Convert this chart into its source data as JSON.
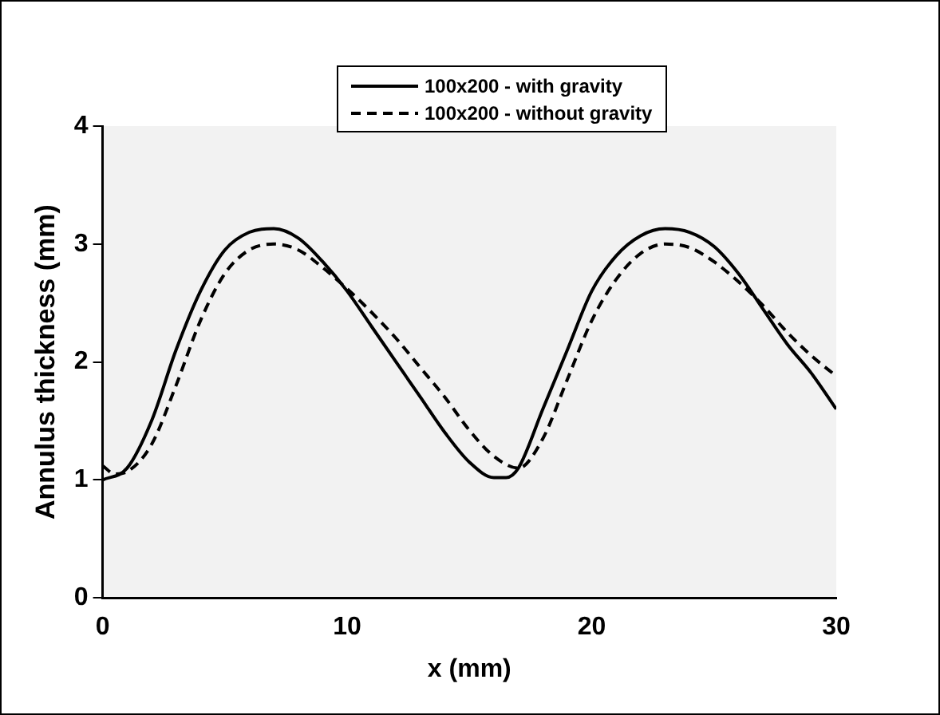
{
  "chart_data": {
    "type": "line",
    "xlabel": "x (mm)",
    "ylabel": "Annulus thickness (mm)",
    "xlim": [
      0,
      30
    ],
    "xticks": [
      0,
      10,
      20,
      30
    ],
    "ylim": [
      0,
      4
    ],
    "yticks": [
      0,
      1,
      2,
      3,
      4
    ],
    "grid": false,
    "legend": "top",
    "marker": "none",
    "series": [
      {
        "name": "100x200 - with gravity",
        "color": "#000000",
        "line_style": "solid",
        "x": [
          0,
          1,
          2,
          3,
          4,
          5,
          6,
          7,
          8,
          9,
          10,
          11,
          12,
          13,
          14,
          15,
          16,
          16.5,
          17,
          18,
          19,
          20,
          21,
          22,
          23,
          24,
          25,
          26,
          27,
          28,
          29,
          30
        ],
        "values": [
          1.0,
          1.1,
          1.5,
          2.1,
          2.6,
          2.95,
          3.1,
          3.13,
          3.05,
          2.85,
          2.6,
          2.3,
          2.0,
          1.7,
          1.4,
          1.15,
          1.02,
          1.02,
          1.1,
          1.6,
          2.1,
          2.6,
          2.9,
          3.07,
          3.13,
          3.1,
          2.98,
          2.75,
          2.45,
          2.15,
          1.9,
          1.6
        ]
      },
      {
        "name": "100x200 - without gravity",
        "color": "#000000",
        "line_style": "dashed",
        "x": [
          0,
          0.5,
          1,
          2,
          3,
          4,
          5,
          6,
          7,
          8,
          9,
          10,
          11,
          12,
          13,
          14,
          15,
          16,
          17,
          18,
          19,
          20,
          21,
          22,
          23,
          24,
          25,
          26,
          27,
          28,
          29,
          30
        ],
        "values": [
          1.12,
          1.05,
          1.07,
          1.3,
          1.8,
          2.35,
          2.75,
          2.95,
          3.0,
          2.95,
          2.8,
          2.62,
          2.42,
          2.2,
          1.95,
          1.7,
          1.42,
          1.2,
          1.1,
          1.35,
          1.85,
          2.35,
          2.7,
          2.92,
          3.0,
          2.97,
          2.85,
          2.68,
          2.48,
          2.25,
          2.05,
          1.88
        ]
      }
    ]
  }
}
